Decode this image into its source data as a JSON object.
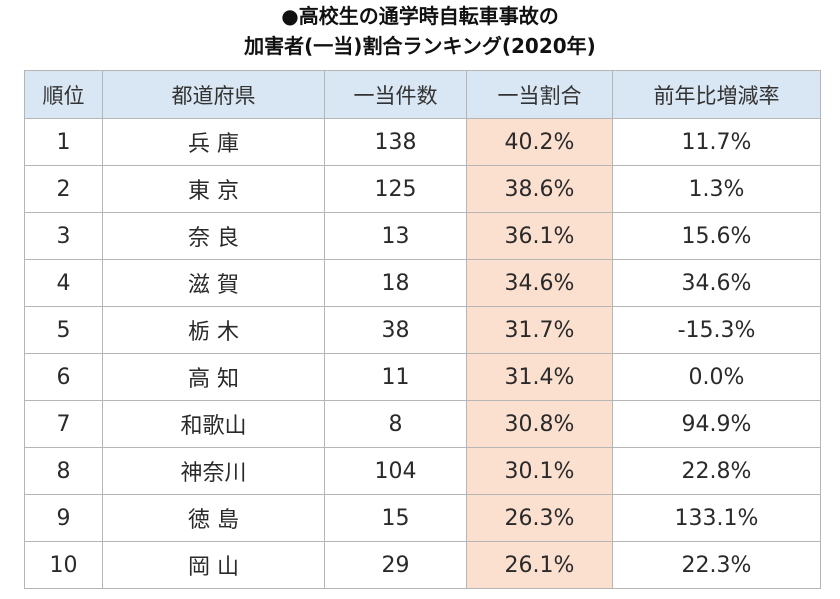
{
  "title_line1": "●高校生の通学時自転車事故の",
  "title_line2": "加害者(一当)割合ランキング(2020年)",
  "headers": [
    "順位",
    "都道府県",
    "一当件数",
    "一当割合",
    "前年比増減率"
  ],
  "rows": [
    {
      "rank": "1",
      "prefecture": "兵 庫",
      "count": "138",
      "ratio": "40.2%",
      "change": "11.7%"
    },
    {
      "rank": "2",
      "prefecture": "東 京",
      "count": "125",
      "ratio": "38.6%",
      "change": "1.3%"
    },
    {
      "rank": "3",
      "prefecture": "奈 良",
      "count": "13",
      "ratio": "36.1%",
      "change": "15.6%"
    },
    {
      "rank": "4",
      "prefecture": "滋 賀",
      "count": "18",
      "ratio": "34.6%",
      "change": "34.6%"
    },
    {
      "rank": "5",
      "prefecture": "栃 木",
      "count": "38",
      "ratio": "31.7%",
      "change": "-15.3%"
    },
    {
      "rank": "6",
      "prefecture": "高 知",
      "count": "11",
      "ratio": "31.4%",
      "change": "0.0%"
    },
    {
      "rank": "7",
      "prefecture": "和歌山",
      "count": "8",
      "ratio": "30.8%",
      "change": "94.9%"
    },
    {
      "rank": "8",
      "prefecture": "神奈川",
      "count": "104",
      "ratio": "30.1%",
      "change": "22.8%"
    },
    {
      "rank": "9",
      "prefecture": "徳 島",
      "count": "15",
      "ratio": "26.3%",
      "change": "133.1%"
    },
    {
      "rank": "10",
      "prefecture": "岡 山",
      "count": "29",
      "ratio": "26.1%",
      "change": "22.3%"
    }
  ],
  "colors": {
    "header_bg": "#d9e6f3",
    "highlight_bg": "#fbe0d0",
    "border": "#b5b5b5"
  }
}
